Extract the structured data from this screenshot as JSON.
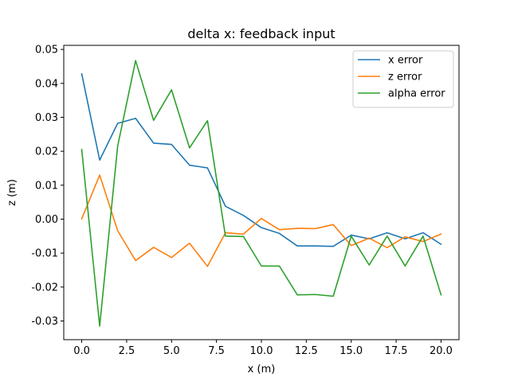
{
  "chart_data": {
    "type": "line",
    "title": "delta x: feedback input",
    "xlabel": "x (m)",
    "ylabel": "z (m)",
    "xlim": [
      -1.0,
      21.0
    ],
    "ylim": [
      -0.0355,
      0.0512
    ],
    "xticks": [
      0.0,
      2.5,
      5.0,
      7.5,
      10.0,
      12.5,
      15.0,
      17.5,
      20.0
    ],
    "xtick_labels": [
      "0.0",
      "2.5",
      "5.0",
      "7.5",
      "10.0",
      "12.5",
      "15.0",
      "17.5",
      "20.0"
    ],
    "yticks": [
      -0.03,
      -0.02,
      -0.01,
      0.0,
      0.01,
      0.02,
      0.03,
      0.04,
      0.05
    ],
    "ytick_labels": [
      "-0.03",
      "-0.02",
      "-0.01",
      "0.00",
      "0.01",
      "0.02",
      "0.03",
      "0.04",
      "0.05"
    ],
    "grid": false,
    "legend_position": "top-right",
    "x": [
      0,
      1,
      2,
      3,
      4,
      5,
      6,
      7,
      8,
      9,
      10,
      11,
      12,
      13,
      14,
      15,
      16,
      17,
      18,
      19,
      20
    ],
    "series": [
      {
        "name": "x error",
        "color": "#1f77b4",
        "values": [
          0.0428,
          0.0174,
          0.0282,
          0.0297,
          0.0224,
          0.022,
          0.0159,
          0.0151,
          0.0038,
          0.0011,
          -0.0025,
          -0.0042,
          -0.0079,
          -0.0079,
          -0.008,
          -0.0047,
          -0.0058,
          -0.004,
          -0.0058,
          -0.004,
          -0.0074
        ]
      },
      {
        "name": "z error",
        "color": "#ff7f0e",
        "values": [
          0.0001,
          0.013,
          -0.0034,
          -0.0122,
          -0.0083,
          -0.0113,
          -0.0071,
          -0.0139,
          -0.004,
          -0.0044,
          0.0002,
          -0.0031,
          -0.0027,
          -0.0028,
          -0.0016,
          -0.0078,
          -0.0056,
          -0.0084,
          -0.0052,
          -0.0066,
          -0.0044
        ]
      },
      {
        "name": "alpha error",
        "color": "#2ca02c",
        "values": [
          0.0205,
          -0.0315,
          0.0215,
          0.0467,
          0.0291,
          0.0381,
          0.021,
          0.029,
          -0.005,
          -0.0051,
          -0.0138,
          -0.0138,
          -0.0223,
          -0.0222,
          -0.0227,
          -0.005,
          -0.0135,
          -0.005,
          -0.0138,
          -0.005,
          -0.0223
        ]
      }
    ]
  }
}
